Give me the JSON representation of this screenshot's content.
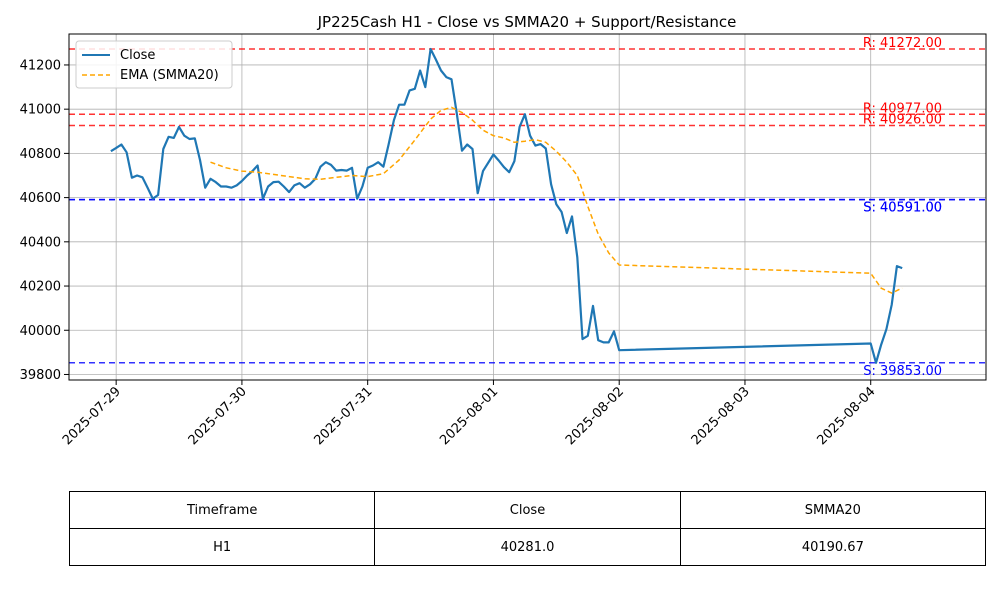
{
  "chart_data": {
    "type": "line",
    "title": "JP225Cash H1 - Close vs SMMA20 + Support/Resistance",
    "xlabel": "",
    "ylabel": "",
    "x_range": [
      "2025-07-28 15:00",
      "2025-08-04 22:00"
    ],
    "ylim": [
      39775,
      41340
    ],
    "x_ticks": [
      "2025-07-29",
      "2025-07-30",
      "2025-07-31",
      "2025-08-01",
      "2025-08-02",
      "2025-08-03",
      "2025-08-04"
    ],
    "y_ticks": [
      39800,
      40000,
      40200,
      40400,
      40600,
      40800,
      41000,
      41200
    ],
    "grid": true,
    "legend_position": "top-left",
    "series": [
      {
        "name": "Close",
        "color": "#1f77b4",
        "style": "solid",
        "points": [
          [
            "2025-07-28 23:00",
            40810
          ],
          [
            "2025-07-29 00:00",
            40825
          ],
          [
            "2025-07-29 01:00",
            40840
          ],
          [
            "2025-07-29 02:00",
            40805
          ],
          [
            "2025-07-29 03:00",
            40690
          ],
          [
            "2025-07-29 04:00",
            40700
          ],
          [
            "2025-07-29 05:00",
            40692
          ],
          [
            "2025-07-29 06:00",
            40645
          ],
          [
            "2025-07-29 07:00",
            40595
          ],
          [
            "2025-07-29 08:00",
            40612
          ],
          [
            "2025-07-29 09:00",
            40820
          ],
          [
            "2025-07-29 10:00",
            40875
          ],
          [
            "2025-07-29 11:00",
            40870
          ],
          [
            "2025-07-29 12:00",
            40920
          ],
          [
            "2025-07-29 13:00",
            40880
          ],
          [
            "2025-07-29 14:00",
            40865
          ],
          [
            "2025-07-29 15:00",
            40868
          ],
          [
            "2025-07-29 16:00",
            40770
          ],
          [
            "2025-07-29 17:00",
            40645
          ],
          [
            "2025-07-29 18:00",
            40685
          ],
          [
            "2025-07-29 19:00",
            40670
          ],
          [
            "2025-07-29 20:00",
            40650
          ],
          [
            "2025-07-29 21:00",
            40650
          ],
          [
            "2025-07-29 22:00",
            40645
          ],
          [
            "2025-07-29 23:00",
            40655
          ],
          [
            "2025-07-30 00:00",
            40675
          ],
          [
            "2025-07-30 01:00",
            40700
          ],
          [
            "2025-07-30 02:00",
            40720
          ],
          [
            "2025-07-30 03:00",
            40745
          ],
          [
            "2025-07-30 04:00",
            40595
          ],
          [
            "2025-07-30 05:00",
            40650
          ],
          [
            "2025-07-30 06:00",
            40670
          ],
          [
            "2025-07-30 07:00",
            40672
          ],
          [
            "2025-07-30 08:00",
            40650
          ],
          [
            "2025-07-30 09:00",
            40625
          ],
          [
            "2025-07-30 10:00",
            40655
          ],
          [
            "2025-07-30 11:00",
            40665
          ],
          [
            "2025-07-30 12:00",
            40645
          ],
          [
            "2025-07-30 13:00",
            40660
          ],
          [
            "2025-07-30 14:00",
            40685
          ],
          [
            "2025-07-30 15:00",
            40740
          ],
          [
            "2025-07-30 16:00",
            40760
          ],
          [
            "2025-07-30 17:00",
            40748
          ],
          [
            "2025-07-30 18:00",
            40722
          ],
          [
            "2025-07-30 19:00",
            40725
          ],
          [
            "2025-07-30 20:00",
            40722
          ],
          [
            "2025-07-30 21:00",
            40735
          ],
          [
            "2025-07-30 22:00",
            40595
          ],
          [
            "2025-07-30 23:00",
            40650
          ],
          [
            "2025-07-31 00:00",
            40735
          ],
          [
            "2025-07-31 01:00",
            40745
          ],
          [
            "2025-07-31 02:00",
            40760
          ],
          [
            "2025-07-31 03:00",
            40740
          ],
          [
            "2025-07-31 04:00",
            40840
          ],
          [
            "2025-07-31 05:00",
            40950
          ],
          [
            "2025-07-31 06:00",
            41020
          ],
          [
            "2025-07-31 07:00",
            41020
          ],
          [
            "2025-07-31 08:00",
            41085
          ],
          [
            "2025-07-31 09:00",
            41092
          ],
          [
            "2025-07-31 10:00",
            41175
          ],
          [
            "2025-07-31 11:00",
            41100
          ],
          [
            "2025-07-31 12:00",
            41272
          ],
          [
            "2025-07-31 13:00",
            41225
          ],
          [
            "2025-07-31 14:00",
            41175
          ],
          [
            "2025-07-31 15:00",
            41145
          ],
          [
            "2025-07-31 16:00",
            41135
          ],
          [
            "2025-07-31 17:00",
            40980
          ],
          [
            "2025-07-31 18:00",
            40812
          ],
          [
            "2025-07-31 19:00",
            40840
          ],
          [
            "2025-07-31 20:00",
            40820
          ],
          [
            "2025-07-31 21:00",
            40620
          ],
          [
            "2025-07-31 22:00",
            40720
          ],
          [
            "2025-08-01 00:00",
            40795
          ],
          [
            "2025-08-01 01:00",
            40768
          ],
          [
            "2025-08-01 02:00",
            40738
          ],
          [
            "2025-08-01 03:00",
            40715
          ],
          [
            "2025-08-01 04:00",
            40765
          ],
          [
            "2025-08-01 05:00",
            40920
          ],
          [
            "2025-08-01 06:00",
            40977
          ],
          [
            "2025-08-01 07:00",
            40880
          ],
          [
            "2025-08-01 08:00",
            40835
          ],
          [
            "2025-08-01 09:00",
            40842
          ],
          [
            "2025-08-01 10:00",
            40822
          ],
          [
            "2025-08-01 11:00",
            40660
          ],
          [
            "2025-08-01 12:00",
            40570
          ],
          [
            "2025-08-01 13:00",
            40535
          ],
          [
            "2025-08-01 14:00",
            40440
          ],
          [
            "2025-08-01 15:00",
            40515
          ],
          [
            "2025-08-01 16:00",
            40330
          ],
          [
            "2025-08-01 17:00",
            39960
          ],
          [
            "2025-08-01 18:00",
            39975
          ],
          [
            "2025-08-01 19:00",
            40110
          ],
          [
            "2025-08-01 20:00",
            39955
          ],
          [
            "2025-08-01 21:00",
            39945
          ],
          [
            "2025-08-01 22:00",
            39945
          ],
          [
            "2025-08-01 23:00",
            39995
          ],
          [
            "2025-08-02 00:00",
            39910
          ],
          [
            "2025-08-04 00:00",
            39940
          ],
          [
            "2025-08-04 01:00",
            39853
          ],
          [
            "2025-08-04 02:00",
            39935
          ],
          [
            "2025-08-04 03:00",
            40005
          ],
          [
            "2025-08-04 04:00",
            40115
          ],
          [
            "2025-08-04 05:00",
            40290
          ],
          [
            "2025-08-04 06:00",
            40281
          ]
        ]
      },
      {
        "name": "EMA (SMMA20)",
        "color": "#ffa500",
        "style": "dashed",
        "points": [
          [
            "2025-07-29 18:00",
            40760
          ],
          [
            "2025-07-29 21:00",
            40735
          ],
          [
            "2025-07-30 00:00",
            40720
          ],
          [
            "2025-07-30 03:00",
            40715
          ],
          [
            "2025-07-30 06:00",
            40705
          ],
          [
            "2025-07-30 09:00",
            40695
          ],
          [
            "2025-07-30 12:00",
            40685
          ],
          [
            "2025-07-30 15:00",
            40683
          ],
          [
            "2025-07-30 18:00",
            40692
          ],
          [
            "2025-07-30 21:00",
            40700
          ],
          [
            "2025-07-31 00:00",
            40695
          ],
          [
            "2025-07-31 03:00",
            40708
          ],
          [
            "2025-07-31 06:00",
            40770
          ],
          [
            "2025-07-31 09:00",
            40860
          ],
          [
            "2025-07-31 12:00",
            40955
          ],
          [
            "2025-07-31 14:00",
            40995
          ],
          [
            "2025-07-31 16:00",
            41008
          ],
          [
            "2025-07-31 18:00",
            40985
          ],
          [
            "2025-07-31 20:00",
            40950
          ],
          [
            "2025-07-31 22:00",
            40905
          ],
          [
            "2025-08-01 00:00",
            40880
          ],
          [
            "2025-08-01 02:00",
            40870
          ],
          [
            "2025-08-01 04:00",
            40850
          ],
          [
            "2025-08-01 06:00",
            40855
          ],
          [
            "2025-08-01 08:00",
            40862
          ],
          [
            "2025-08-01 10:00",
            40850
          ],
          [
            "2025-08-01 12:00",
            40810
          ],
          [
            "2025-08-01 14:00",
            40760
          ],
          [
            "2025-08-01 16:00",
            40700
          ],
          [
            "2025-08-01 18:00",
            40560
          ],
          [
            "2025-08-01 20:00",
            40435
          ],
          [
            "2025-08-01 22:00",
            40350
          ],
          [
            "2025-08-02 00:00",
            40295
          ],
          [
            "2025-08-04 00:00",
            40258
          ],
          [
            "2025-08-04 02:00",
            40190
          ],
          [
            "2025-08-04 04:00",
            40168
          ],
          [
            "2025-08-04 06:00",
            40191
          ]
        ]
      }
    ],
    "levels": [
      {
        "kind": "resistance",
        "value": 41272,
        "label": "R: 41272.00",
        "color": "#ff0000"
      },
      {
        "kind": "resistance",
        "value": 40977,
        "label": "R: 40977.00",
        "color": "#ff0000"
      },
      {
        "kind": "resistance",
        "value": 40926,
        "label": "R: 40926.00",
        "color": "#ff0000"
      },
      {
        "kind": "support",
        "value": 40591,
        "label": "S: 40591.00",
        "color": "#0000ff"
      },
      {
        "kind": "support",
        "value": 40591,
        "label": "S: 40591.00",
        "color": "#0000ff"
      },
      {
        "kind": "support",
        "value": 39853,
        "label": "S: 39853.00",
        "color": "#0000ff"
      }
    ]
  },
  "table": {
    "headers": [
      "Timeframe",
      "Close",
      "SMMA20"
    ],
    "rows": [
      [
        "H1",
        "40281.0",
        "40190.67"
      ]
    ]
  }
}
